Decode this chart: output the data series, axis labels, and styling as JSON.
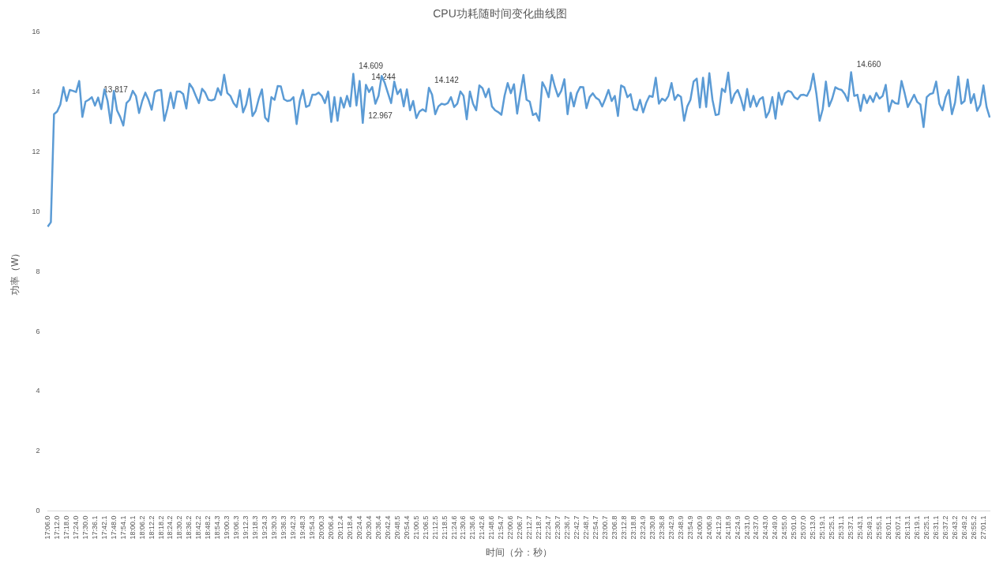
{
  "chart_data": {
    "type": "line",
    "title": "CPU功耗随时间变化曲线图",
    "xlabel": "时间（分：秒）",
    "ylabel": "功率（W）",
    "ylim": [
      0,
      16
    ],
    "yticks": [
      0,
      2,
      4,
      6,
      8,
      10,
      12,
      14,
      16
    ],
    "marker": "none",
    "line_style": "solid",
    "categories": [
      "17:06.0",
      null,
      null,
      "17:12.0",
      null,
      null,
      "17:18.0",
      null,
      null,
      "17:24.0",
      null,
      null,
      "17:30.0",
      null,
      null,
      "17:36.1",
      null,
      null,
      "17:42.1",
      null,
      null,
      "17:48.0",
      null,
      null,
      "17:54.1",
      null,
      null,
      "18:00.1",
      null,
      null,
      "18:06.2",
      null,
      null,
      "18:12.2",
      null,
      null,
      "18:18.2",
      null,
      null,
      "18:24.2",
      null,
      null,
      "18:30.2",
      null,
      null,
      "18:36.2",
      null,
      null,
      "18:42.2",
      null,
      null,
      "18:48.2",
      null,
      null,
      "18:54.3",
      null,
      null,
      "19:00.3",
      null,
      null,
      "19:06.3",
      null,
      null,
      "19:12.3",
      null,
      null,
      "19:18.3",
      null,
      null,
      "19:24.3",
      null,
      null,
      "19:30.3",
      null,
      null,
      "19:36.3",
      null,
      null,
      "19:42.3",
      null,
      null,
      "19:48.3",
      null,
      null,
      "19:54.3",
      null,
      null,
      "20:00.3",
      null,
      null,
      "20:06.4",
      null,
      null,
      "20:12.4",
      null,
      null,
      "20:18.4",
      null,
      null,
      "20:24.4",
      null,
      null,
      "20:30.4",
      null,
      null,
      "20:36.4",
      null,
      null,
      "20:42.4",
      null,
      null,
      "20:48.5",
      null,
      null,
      "20:54.4",
      null,
      null,
      "21:00.5",
      null,
      null,
      "21:06.5",
      null,
      null,
      "21:12.5",
      null,
      null,
      "21:18.5",
      null,
      null,
      "21:24.6",
      null,
      null,
      "21:30.6",
      null,
      null,
      "21:36.6",
      null,
      null,
      "21:42.6",
      null,
      null,
      "21:48.6",
      null,
      null,
      "21:54.7",
      null,
      null,
      "22:00.6",
      null,
      null,
      "22:06.7",
      null,
      null,
      "22:12.7",
      null,
      null,
      "22:18.7",
      null,
      null,
      "22:24.7",
      null,
      null,
      "22:30.7",
      null,
      null,
      "22:36.7",
      null,
      null,
      "22:42.7",
      null,
      null,
      "22:48.7",
      null,
      null,
      "22:54.7",
      null,
      null,
      "23:00.7",
      null,
      null,
      "23:06.8",
      null,
      null,
      "23:12.8",
      null,
      null,
      "23:18.8",
      null,
      null,
      "23:24.9",
      null,
      null,
      "23:30.8",
      null,
      null,
      "23:36.8",
      null,
      null,
      "23:42.9",
      null,
      null,
      "23:48.9",
      null,
      null,
      "23:54.9",
      null,
      null,
      "24:00.9",
      null,
      null,
      "24:06.9",
      null,
      null,
      "24:12.9",
      null,
      null,
      "24:18.9",
      null,
      null,
      "24:24.9",
      null,
      null,
      "24:31.0",
      null,
      null,
      "24:37.0",
      null,
      null,
      "24:43.0",
      null,
      null,
      "24:49.0",
      null,
      null,
      "24:55.0",
      null,
      null,
      "25:01.0",
      null,
      null,
      "25:07.0",
      null,
      null,
      "25:13.0",
      null,
      null,
      "25:19.1",
      null,
      null,
      "25:25.1",
      null,
      null,
      "25:31.1",
      null,
      null,
      "25:37.1",
      null,
      null,
      "25:43.1",
      null,
      null,
      "25:49.1",
      null,
      null,
      "25:55.1",
      null,
      null,
      "26:01.1",
      null,
      null,
      "26:07.1",
      null,
      null,
      "26:13.1",
      null,
      null,
      "26:19.1",
      null,
      null,
      "26:25.1",
      null,
      null,
      "26:31.1",
      null,
      null,
      "26:37.2",
      null,
      null,
      "26:43.2",
      null,
      null,
      "26:49.2",
      null,
      null,
      "26:55.2",
      null,
      null,
      "27:01.1",
      null,
      null
    ],
    "series": [
      {
        "color": "#5b9bd5",
        "values": [
          9.5,
          9.65,
          13.26,
          13.35,
          13.58,
          14.16,
          13.7,
          14.07,
          14.04,
          14.0,
          14.37,
          13.17,
          13.68,
          13.74,
          13.83,
          13.55,
          13.817,
          13.43,
          14.09,
          13.7,
          12.96,
          14.04,
          13.39,
          13.17,
          12.88,
          13.63,
          13.74,
          14.04,
          13.87,
          13.3,
          13.7,
          13.98,
          13.74,
          13.41,
          14.0,
          14.06,
          14.07,
          13.04,
          13.45,
          13.98,
          13.46,
          14.02,
          14.02,
          13.93,
          13.45,
          14.28,
          14.13,
          13.87,
          13.63,
          14.11,
          13.98,
          13.74,
          13.72,
          13.76,
          14.13,
          13.9,
          14.58,
          13.97,
          13.87,
          13.63,
          13.5,
          14.06,
          13.32,
          13.58,
          14.11,
          13.2,
          13.37,
          13.78,
          14.09,
          13.15,
          13.02,
          13.83,
          13.74,
          14.2,
          14.19,
          13.76,
          13.7,
          13.72,
          13.83,
          12.93,
          13.7,
          14.07,
          13.5,
          13.55,
          13.91,
          13.91,
          13.98,
          13.87,
          13.63,
          14.02,
          13.0,
          13.83,
          13.04,
          13.81,
          13.48,
          13.87,
          13.52,
          14.609,
          13.55,
          14.37,
          12.967,
          14.244,
          14.0,
          14.17,
          13.61,
          13.87,
          14.54,
          14.3,
          13.96,
          13.63,
          14.35,
          13.93,
          14.09,
          13.52,
          14.09,
          13.39,
          13.7,
          13.13,
          13.35,
          13.42,
          13.35,
          14.142,
          13.91,
          13.26,
          13.52,
          13.61,
          13.58,
          13.63,
          13.83,
          13.5,
          13.61,
          14.02,
          13.87,
          13.09,
          14.02,
          13.61,
          13.39,
          14.22,
          14.13,
          13.83,
          14.11,
          13.52,
          13.39,
          13.33,
          13.24,
          13.87,
          14.3,
          13.96,
          14.26,
          13.28,
          13.96,
          14.57,
          13.74,
          13.68,
          13.23,
          13.29,
          13.04,
          14.33,
          14.13,
          13.83,
          14.57,
          14.17,
          13.85,
          14.04,
          14.43,
          13.26,
          13.98,
          13.52,
          13.96,
          14.17,
          14.16,
          13.46,
          13.83,
          13.96,
          13.81,
          13.74,
          13.52,
          13.78,
          14.07,
          13.7,
          13.87,
          13.2,
          14.22,
          14.16,
          13.83,
          13.93,
          13.43,
          13.39,
          13.74,
          13.32,
          13.65,
          13.87,
          13.84,
          14.48,
          13.61,
          13.78,
          13.71,
          13.87,
          14.3,
          13.74,
          13.91,
          13.84,
          13.04,
          13.52,
          13.74,
          14.35,
          14.45,
          13.48,
          14.48,
          13.5,
          14.63,
          13.74,
          13.23,
          13.26,
          14.11,
          14.0,
          14.65,
          13.63,
          13.93,
          14.07,
          13.78,
          13.39,
          14.1,
          13.5,
          13.87,
          13.52,
          13.76,
          13.83,
          13.15,
          13.35,
          13.83,
          13.11,
          13.98,
          13.58,
          13.96,
          14.04,
          14.0,
          13.83,
          13.76,
          13.9,
          13.91,
          13.87,
          14.09,
          14.61,
          13.93,
          13.04,
          13.43,
          14.35,
          13.52,
          13.78,
          14.16,
          14.1,
          14.07,
          13.93,
          13.7,
          14.66,
          13.87,
          13.91,
          13.37,
          13.91,
          13.63,
          13.87,
          13.67,
          13.97,
          13.78,
          13.87,
          14.24,
          13.35,
          13.72,
          13.63,
          13.61,
          14.37,
          13.96,
          13.5,
          13.7,
          13.91,
          13.67,
          13.58,
          12.83,
          13.83,
          13.93,
          13.96,
          14.35,
          13.61,
          13.39,
          13.83,
          14.07,
          13.26,
          13.65,
          14.52,
          13.61,
          13.7,
          14.42,
          13.63,
          13.93,
          13.37,
          13.57,
          14.22,
          13.5,
          13.15
        ],
        "value_labels": [
          null,
          null,
          null,
          null,
          null,
          null,
          null,
          null,
          null,
          null,
          null,
          null,
          null,
          null,
          null,
          null,
          "13.817",
          null,
          null,
          null,
          null,
          null,
          null,
          null,
          null,
          null,
          null,
          null,
          null,
          null,
          null,
          null,
          null,
          null,
          null,
          null,
          null,
          null,
          null,
          null,
          null,
          null,
          null,
          null,
          null,
          null,
          null,
          null,
          null,
          null,
          null,
          null,
          null,
          null,
          null,
          null,
          null,
          null,
          null,
          null,
          null,
          null,
          null,
          null,
          null,
          null,
          null,
          null,
          null,
          null,
          null,
          null,
          null,
          null,
          null,
          null,
          null,
          null,
          null,
          null,
          null,
          null,
          null,
          null,
          null,
          null,
          null,
          null,
          null,
          null,
          null,
          null,
          null,
          null,
          null,
          null,
          null,
          "14.609",
          null,
          null,
          "12.967",
          "14.244",
          null,
          null,
          null,
          null,
          null,
          null,
          null,
          null,
          null,
          null,
          null,
          null,
          null,
          null,
          null,
          null,
          null,
          null,
          null,
          "14.142",
          null,
          null,
          null,
          null,
          null,
          null,
          null,
          null,
          null,
          null,
          null,
          null,
          null,
          null,
          null,
          null,
          null,
          null,
          null,
          null,
          null,
          null,
          null,
          null,
          null,
          null,
          null,
          null,
          null,
          null,
          null,
          null,
          null,
          null,
          null,
          null,
          null,
          null,
          null,
          null,
          null,
          null,
          null,
          null,
          null,
          null,
          null,
          null,
          null,
          null,
          null,
          null,
          null,
          null,
          null,
          null,
          null,
          null,
          null,
          null,
          null,
          null,
          null,
          null,
          null,
          null,
          null,
          null,
          null,
          null,
          null,
          null,
          null,
          null,
          null,
          null,
          null,
          null,
          null,
          null,
          null,
          null,
          null,
          null,
          null,
          null,
          null,
          null,
          null,
          null,
          null,
          null,
          null,
          null,
          null,
          null,
          null,
          null,
          null,
          null,
          null,
          null,
          null,
          null,
          null,
          null,
          null,
          null,
          null,
          null,
          null,
          null,
          null,
          null,
          null,
          null,
          null,
          null,
          null,
          null,
          null,
          null,
          null,
          null,
          null,
          null,
          null,
          null,
          null,
          null,
          null,
          null,
          null,
          "14.660",
          null,
          null,
          null,
          null,
          null,
          null,
          null,
          null,
          null,
          null,
          null,
          null,
          null,
          null,
          null,
          null,
          null,
          null,
          null,
          null,
          null,
          null,
          null,
          null,
          null,
          null,
          null,
          null,
          null,
          null,
          null,
          null,
          null,
          null,
          null,
          null,
          null,
          null,
          null,
          null,
          null,
          null,
          null,
          null
        ]
      }
    ]
  }
}
